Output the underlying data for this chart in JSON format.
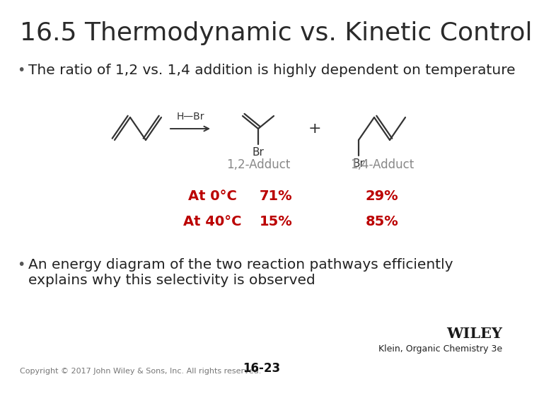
{
  "title": "16.5 Thermodynamic vs. Kinetic Control",
  "title_fontsize": 26,
  "title_color": "#2a2a2a",
  "background_color": "#ffffff",
  "bullet1": "The ratio of 1,2 vs. 1,4 addition is highly dependent on temperature",
  "bullet1_fontsize": 14.5,
  "bullet2_line1": "An energy diagram of the two reaction pathways efficiently",
  "bullet2_line2": "explains why this selectivity is observed",
  "bullet2_fontsize": 14.5,
  "label_12adduct": "1,2-Adduct",
  "label_14adduct": "1,4-Adduct",
  "adduct_fontsize": 12,
  "adduct_color": "#888888",
  "at0_label": "At 0°C",
  "at40_label": "At 40°C",
  "at0_12": "71%",
  "at0_14": "29%",
  "at40_12": "15%",
  "at40_14": "85%",
  "table_fontsize": 14,
  "red_color": "#bb0000",
  "hbr_label": "H—Br",
  "plus_label": "+",
  "br_label": "Br",
  "copyright": "Copyright © 2017 John Wiley & Sons, Inc. All rights reserved.",
  "page_number": "16-23",
  "klein": "Klein, Organic Chemistry 3e",
  "wiley": "WILEY",
  "footer_fontsize": 8,
  "wiley_fontsize": 15,
  "bond_color": "#333333",
  "bond_lw": 1.6
}
